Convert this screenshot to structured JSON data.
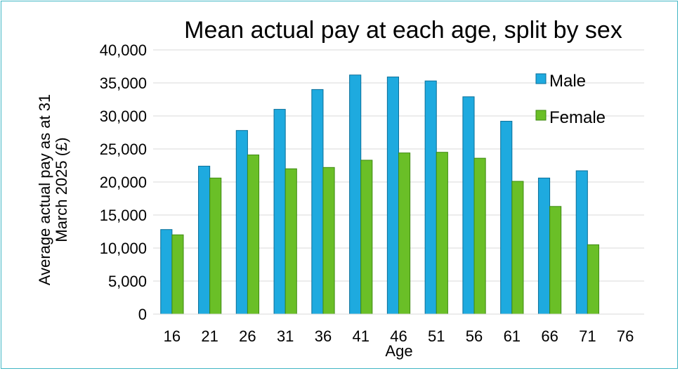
{
  "chart_data": {
    "type": "bar",
    "title": "Mean actual pay at each age, split by sex",
    "xlabel": "Age",
    "ylabel_line1": "Average actual pay as at 31",
    "ylabel_line2": "March 2025 (£)",
    "categories": [
      "16",
      "21",
      "26",
      "31",
      "36",
      "41",
      "46",
      "51",
      "56",
      "61",
      "66",
      "71",
      "76"
    ],
    "ylim": [
      0,
      40000
    ],
    "yticks": [
      "0",
      "5,000",
      "10,000",
      "15,000",
      "20,000",
      "25,000",
      "30,000",
      "35,000",
      "40,000"
    ],
    "grid": true,
    "legend_position": "top-right",
    "series": [
      {
        "name": "Male",
        "color": "#1eaadf",
        "values": [
          12800,
          22400,
          27800,
          31000,
          34000,
          36200,
          35900,
          35300,
          32900,
          29200,
          20600,
          21700,
          null
        ]
      },
      {
        "name": "Female",
        "color": "#6abf27",
        "values": [
          12000,
          20600,
          24100,
          22000,
          22200,
          23300,
          24400,
          24500,
          23600,
          20100,
          16300,
          10500,
          null
        ]
      }
    ]
  }
}
